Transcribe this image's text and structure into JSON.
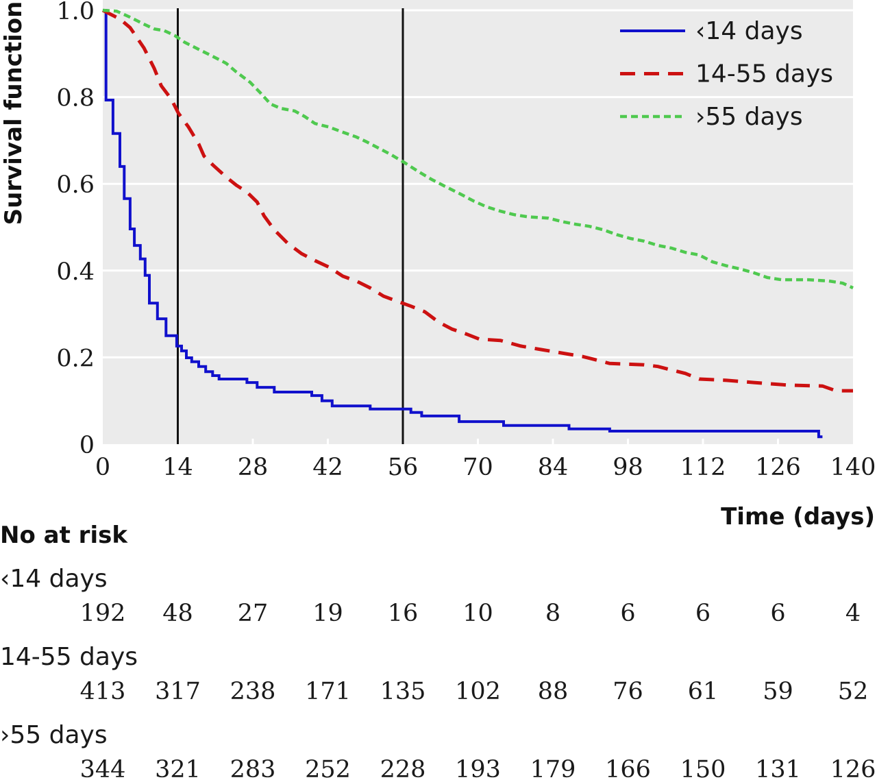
{
  "chart_data": {
    "type": "line",
    "xlabel": "Time (days)",
    "ylabel": "Survival function",
    "xlim": [
      0,
      140
    ],
    "ylim": [
      0,
      1
    ],
    "xticks": [
      0,
      14,
      28,
      42,
      56,
      70,
      84,
      98,
      112,
      126,
      140
    ],
    "yticks": [
      "0",
      "0.2",
      "0.4",
      "0.6",
      "0.8",
      "1.0"
    ],
    "grid": true,
    "legend_position": "top-right",
    "vlines": [
      14,
      56
    ],
    "series": [
      {
        "name": "‹14 days",
        "color": "#1010cc",
        "line_style": "solid",
        "points": [
          [
            0,
            1.0
          ],
          [
            0.6,
            0.793
          ],
          [
            1.9,
            0.716
          ],
          [
            3.2,
            0.64
          ],
          [
            4.0,
            0.566
          ],
          [
            5.1,
            0.496
          ],
          [
            5.9,
            0.458
          ],
          [
            7.0,
            0.427
          ],
          [
            7.9,
            0.389
          ],
          [
            8.7,
            0.325
          ],
          [
            10.2,
            0.289
          ],
          [
            11.8,
            0.25
          ],
          [
            13.8,
            0.226
          ],
          [
            14.7,
            0.215
          ],
          [
            15.6,
            0.199
          ],
          [
            16.6,
            0.19
          ],
          [
            17.9,
            0.179
          ],
          [
            19.2,
            0.167
          ],
          [
            20.5,
            0.158
          ],
          [
            21.7,
            0.15
          ],
          [
            26.9,
            0.142
          ],
          [
            28.8,
            0.131
          ],
          [
            32.0,
            0.12
          ],
          [
            39.0,
            0.112
          ],
          [
            40.9,
            0.1
          ],
          [
            42.8,
            0.088
          ],
          [
            49.9,
            0.081
          ],
          [
            57.5,
            0.073
          ],
          [
            59.5,
            0.065
          ],
          [
            66.5,
            0.052
          ],
          [
            74.8,
            0.043
          ],
          [
            87.0,
            0.035
          ],
          [
            94.6,
            0.03
          ],
          [
            133.6,
            0.017
          ],
          [
            134.3,
            0.017
          ]
        ]
      },
      {
        "name": "14-55 days",
        "color": "#cc1111",
        "line_style": "dashed",
        "points": [
          [
            0,
            1.0
          ],
          [
            3.2,
            0.98
          ],
          [
            5.1,
            0.96
          ],
          [
            7.7,
            0.913
          ],
          [
            9.6,
            0.866
          ],
          [
            10.9,
            0.826
          ],
          [
            12.8,
            0.795
          ],
          [
            14.1,
            0.763
          ],
          [
            16.0,
            0.731
          ],
          [
            17.9,
            0.692
          ],
          [
            18.9,
            0.664
          ],
          [
            20.5,
            0.644
          ],
          [
            23.0,
            0.616
          ],
          [
            24.9,
            0.597
          ],
          [
            26.9,
            0.581
          ],
          [
            28.8,
            0.558
          ],
          [
            30.1,
            0.526
          ],
          [
            32.0,
            0.494
          ],
          [
            34.5,
            0.463
          ],
          [
            37.1,
            0.439
          ],
          [
            39.6,
            0.423
          ],
          [
            42.2,
            0.408
          ],
          [
            44.8,
            0.387
          ],
          [
            47.3,
            0.376
          ],
          [
            49.9,
            0.36
          ],
          [
            52.4,
            0.341
          ],
          [
            55.0,
            0.329
          ],
          [
            57.5,
            0.318
          ],
          [
            60.1,
            0.305
          ],
          [
            62.7,
            0.281
          ],
          [
            65.2,
            0.265
          ],
          [
            67.8,
            0.254
          ],
          [
            70.3,
            0.242
          ],
          [
            74.2,
            0.239
          ],
          [
            78.0,
            0.226
          ],
          [
            81.8,
            0.218
          ],
          [
            85.7,
            0.21
          ],
          [
            89.5,
            0.202
          ],
          [
            92.1,
            0.194
          ],
          [
            94.6,
            0.186
          ],
          [
            101.0,
            0.183
          ],
          [
            103.6,
            0.179
          ],
          [
            106.1,
            0.171
          ],
          [
            108.7,
            0.163
          ],
          [
            111.3,
            0.15
          ],
          [
            116.4,
            0.147
          ],
          [
            121.5,
            0.142
          ],
          [
            127.9,
            0.136
          ],
          [
            134.3,
            0.134
          ],
          [
            136.8,
            0.123
          ],
          [
            140.0,
            0.123
          ]
        ]
      },
      {
        "name": "›55 days",
        "color": "#4fc94f",
        "line_style": "dotted",
        "points": [
          [
            0,
            1.0
          ],
          [
            2.6,
            0.998
          ],
          [
            5.1,
            0.984
          ],
          [
            7.7,
            0.968
          ],
          [
            9.6,
            0.957
          ],
          [
            11.5,
            0.953
          ],
          [
            13.4,
            0.942
          ],
          [
            15.3,
            0.926
          ],
          [
            17.9,
            0.91
          ],
          [
            20.5,
            0.894
          ],
          [
            23.0,
            0.878
          ],
          [
            24.9,
            0.858
          ],
          [
            27.5,
            0.834
          ],
          [
            29.4,
            0.81
          ],
          [
            31.3,
            0.784
          ],
          [
            33.2,
            0.774
          ],
          [
            35.8,
            0.768
          ],
          [
            37.7,
            0.755
          ],
          [
            39.6,
            0.739
          ],
          [
            42.2,
            0.731
          ],
          [
            44.8,
            0.719
          ],
          [
            47.3,
            0.708
          ],
          [
            49.2,
            0.697
          ],
          [
            51.2,
            0.684
          ],
          [
            53.7,
            0.668
          ],
          [
            56.3,
            0.649
          ],
          [
            58.8,
            0.629
          ],
          [
            61.4,
            0.61
          ],
          [
            63.9,
            0.594
          ],
          [
            66.5,
            0.578
          ],
          [
            69.1,
            0.561
          ],
          [
            71.6,
            0.547
          ],
          [
            74.2,
            0.537
          ],
          [
            76.7,
            0.529
          ],
          [
            79.3,
            0.524
          ],
          [
            83.1,
            0.521
          ],
          [
            85.7,
            0.513
          ],
          [
            88.2,
            0.507
          ],
          [
            90.8,
            0.502
          ],
          [
            93.4,
            0.494
          ],
          [
            95.9,
            0.483
          ],
          [
            98.5,
            0.474
          ],
          [
            101.0,
            0.468
          ],
          [
            103.6,
            0.458
          ],
          [
            106.1,
            0.452
          ],
          [
            108.7,
            0.442
          ],
          [
            111.3,
            0.436
          ],
          [
            113.8,
            0.42
          ],
          [
            116.4,
            0.411
          ],
          [
            118.9,
            0.404
          ],
          [
            121.5,
            0.395
          ],
          [
            124.0,
            0.384
          ],
          [
            126.6,
            0.379
          ],
          [
            131.7,
            0.379
          ],
          [
            135.5,
            0.376
          ],
          [
            138.1,
            0.371
          ],
          [
            140.0,
            0.36
          ]
        ]
      }
    ]
  },
  "risk_table": {
    "title": "No at risk",
    "rows": [
      {
        "label": "‹14 days",
        "counts": [
          192,
          48,
          27,
          19,
          16,
          10,
          8,
          6,
          6,
          6,
          4
        ]
      },
      {
        "label": "14-55 days",
        "counts": [
          413,
          317,
          238,
          171,
          135,
          102,
          88,
          76,
          61,
          59,
          52
        ]
      },
      {
        "label": "›55 days",
        "counts": [
          344,
          321,
          283,
          252,
          228,
          193,
          179,
          166,
          150,
          131,
          126
        ]
      }
    ]
  }
}
